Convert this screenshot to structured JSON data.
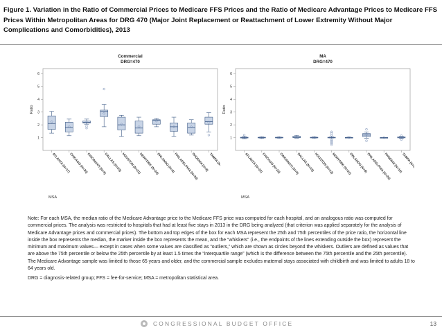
{
  "figure": {
    "title": "Figure 1. Variation in the Ratio of Commercial Prices to Medicare FFS Prices and the Ratio of Medicare Advantage Prices to Medicare FFS Prices Within Metropolitan Areas for DRG 470 (Major Joint Replacement or Reattachment of Lower Extremity Without Major Complications and Comorbidities), 2013"
  },
  "chart_data": [
    {
      "type": "box",
      "title": "Commercial",
      "subtitle": "DRG=470",
      "xlabel": "MSA",
      "ylabel": "Ratio",
      "ylim": [
        0,
        6.4
      ],
      "yticks": [
        1,
        2,
        3,
        4,
        5,
        6
      ],
      "categories": [
        "ATLANTA (N=17)",
        "CHICAGO (N=36)",
        "CINCINNATI (N=9)",
        "DALLAS (N=23)",
        "HOUSTON (N=21)",
        "NEWYORK (N=34)",
        "ORLANDO (N=9)",
        "PHILADELPHIA (N=30)",
        "PHOENIX (N=8)",
        "TAMPA (N=11)"
      ],
      "boxes": [
        {
          "min": 1.35,
          "q1": 1.65,
          "median": 2.1,
          "mean": 2.25,
          "q3": 2.7,
          "max": 3.05,
          "outliers": []
        },
        {
          "min": 1.15,
          "q1": 1.45,
          "median": 1.8,
          "mean": 1.85,
          "q3": 2.2,
          "max": 2.45,
          "outliers": []
        },
        {
          "min": 2.05,
          "q1": 2.15,
          "median": 2.2,
          "mean": 2.2,
          "q3": 2.3,
          "max": 2.45,
          "outliers": [
            1.9,
            1.75
          ]
        },
        {
          "min": 1.85,
          "q1": 2.65,
          "median": 3.05,
          "mean": 2.9,
          "q3": 3.15,
          "max": 3.6,
          "outliers": [
            4.8
          ]
        },
        {
          "min": 1.1,
          "q1": 1.6,
          "median": 2.0,
          "mean": 2.05,
          "q3": 2.6,
          "max": 2.75,
          "outliers": []
        },
        {
          "min": 1.15,
          "q1": 1.35,
          "median": 1.75,
          "mean": 1.85,
          "q3": 2.3,
          "max": 2.6,
          "outliers": []
        },
        {
          "min": 1.85,
          "q1": 2.05,
          "median": 2.35,
          "mean": 2.3,
          "q3": 2.4,
          "max": 2.5,
          "outliers": []
        },
        {
          "min": 1.1,
          "q1": 1.5,
          "median": 1.85,
          "mean": 1.85,
          "q3": 2.15,
          "max": 2.6,
          "outliers": []
        },
        {
          "min": 1.2,
          "q1": 1.35,
          "median": 1.8,
          "mean": 1.85,
          "q3": 2.15,
          "max": 2.4,
          "outliers": []
        },
        {
          "min": 1.45,
          "q1": 2.05,
          "median": 2.25,
          "mean": 2.2,
          "q3": 2.6,
          "max": 2.95,
          "outliers": [
            1.2
          ]
        }
      ]
    },
    {
      "type": "box",
      "title": "MA",
      "subtitle": "DRG=470",
      "xlabel": "MSA",
      "ylabel": "Ratio",
      "ylim": [
        0,
        6.4
      ],
      "yticks": [
        1,
        2,
        3,
        4,
        5,
        6
      ],
      "categories": [
        "ATLANTA (N=22)",
        "CHICAGO (N=23)",
        "CINCINNATI (N=9)",
        "DALLAS (N=15)",
        "HOUSTON (N=12)",
        "NEWYORK (N=31)",
        "ORLANDO (N=8)",
        "PHILADELPHIA (N=26)",
        "PHOENIX (N=10)",
        "TAMPA (N=24)"
      ],
      "boxes": [
        {
          "min": 0.92,
          "q1": 0.97,
          "median": 1.0,
          "mean": 1.0,
          "q3": 1.03,
          "max": 1.08,
          "outliers": [
            1.2
          ]
        },
        {
          "min": 0.95,
          "q1": 0.98,
          "median": 1.0,
          "mean": 1.0,
          "q3": 1.03,
          "max": 1.06,
          "outliers": []
        },
        {
          "min": 0.96,
          "q1": 0.99,
          "median": 1.0,
          "mean": 1.01,
          "q3": 1.03,
          "max": 1.05,
          "outliers": []
        },
        {
          "min": 0.96,
          "q1": 1.0,
          "median": 1.03,
          "mean": 1.05,
          "q3": 1.1,
          "max": 1.18,
          "outliers": []
        },
        {
          "min": 0.96,
          "q1": 0.99,
          "median": 1.0,
          "mean": 1.01,
          "q3": 1.03,
          "max": 1.06,
          "outliers": []
        },
        {
          "min": 0.97,
          "q1": 0.99,
          "median": 1.0,
          "mean": 1.02,
          "q3": 1.03,
          "max": 1.06,
          "outliers": [
            1.2,
            1.35,
            1.45,
            0.85,
            0.75,
            0.65,
            0.55,
            0.45
          ]
        },
        {
          "min": 0.97,
          "q1": 0.99,
          "median": 1.0,
          "mean": 1.0,
          "q3": 1.02,
          "max": 1.04,
          "outliers": []
        },
        {
          "min": 0.95,
          "q1": 1.08,
          "median": 1.2,
          "mean": 1.22,
          "q3": 1.32,
          "max": 1.45,
          "outliers": [
            1.65,
            0.75
          ]
        },
        {
          "min": 0.98,
          "q1": 0.99,
          "median": 1.0,
          "mean": 1.0,
          "q3": 1.01,
          "max": 1.02,
          "outliers": []
        },
        {
          "min": 0.93,
          "q1": 0.98,
          "median": 1.0,
          "mean": 1.02,
          "q3": 1.06,
          "max": 1.1,
          "outliers": [
            1.15,
            0.85
          ]
        }
      ]
    }
  ],
  "note": {
    "paragraph": "Note: For each MSA, the median ratio of the Medicare Advantage price to the Medicare FFS price was computed for each hospital, and an analogous ratio was computed for commercial prices. The analysis was restricted to hospitals that had at least five stays in 2013 in the DRG being analyzed (that criterion was applied separately for the analysis of Medicare Advantage prices and commercial prices). The bottom and top edges of the box for each MSA represent the 25th and 75th percentiles of the price ratio, the horizontal line inside the box represents the median, the marker inside the box represents the mean, and the “whiskers” (i.e., the endpoints of the lines extending outside the box) represent the minimum and maximum values— except in cases when some values are classified as “outliers,” which are shown as circles beyond the whiskers. Outliers are defined as values that are above the 75th percentile or below the 25th percentile by at least 1.5 times the “interquartile range” (which is the difference between the 75th percentile and the 25th percentile). The Medicare Advantage sample was limited to those 65 years and older, and the commercial sample excludes maternal stays associated with childbirth and was limited to adults 18 to 64 years old.",
    "abbreviations": "DRG = diagnosis-related group; FFS = fee-for-service; MSA = metropolitan statistical area."
  },
  "footer": {
    "brand": "CONGRESSIONAL BUDGET OFFICE",
    "page_number": "13"
  },
  "colors": {
    "box_fill": "#c8d4e6",
    "box_stroke": "#3d5a86",
    "axis": "#9a9a9a",
    "marker": "#6e86b0"
  }
}
